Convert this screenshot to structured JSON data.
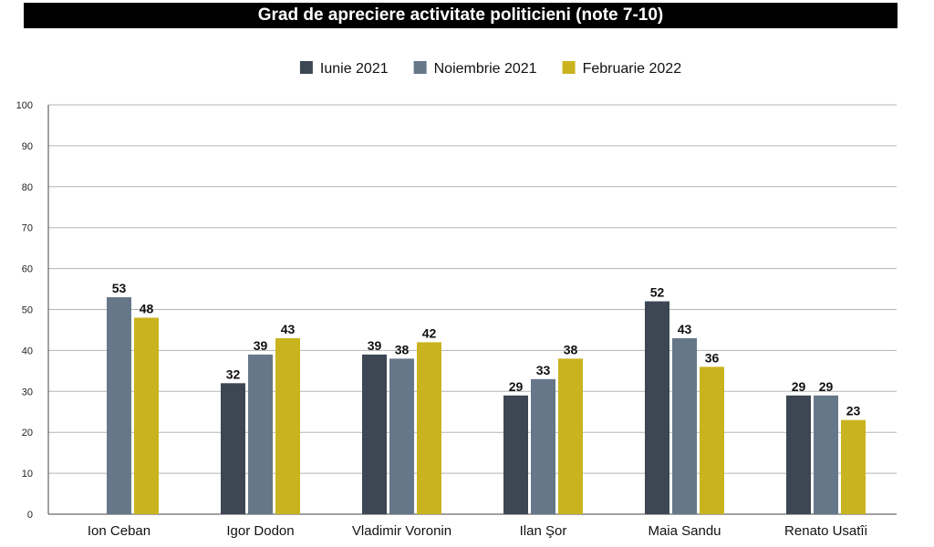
{
  "chart_data": {
    "type": "bar",
    "title": "Grad de apreciere activitate politicieni (note 7-10)",
    "categories": [
      "Ion Ceban",
      "Igor Dodon",
      "Vladimir Voronin",
      "Ilan Şor",
      "Maia Sandu",
      "Renato Usatîi"
    ],
    "series": [
      {
        "name": "Iunie 2021",
        "color": "#3d4753",
        "values": [
          null,
          32,
          39,
          29,
          52,
          29
        ]
      },
      {
        "name": "Noiembrie 2021",
        "color": "#66778a",
        "values": [
          53,
          39,
          38,
          33,
          43,
          29
        ]
      },
      {
        "name": "Februarie 2022",
        "color": "#c9b41f",
        "values": [
          48,
          43,
          42,
          38,
          36,
          23
        ]
      }
    ],
    "ylim": [
      0,
      100
    ],
    "yticks": [
      0,
      10,
      20,
      30,
      40,
      50,
      60,
      70,
      80,
      90,
      100
    ],
    "grid": true,
    "legend_position": "top-center"
  }
}
